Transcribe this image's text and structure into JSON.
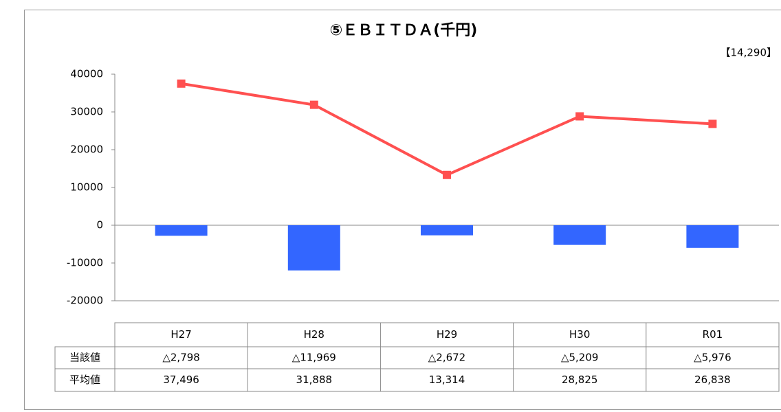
{
  "chart_data": {
    "type": "combo",
    "title": "⑤ＥＢＩＴＤＡ(千円)",
    "annotation": "【14,290】",
    "categories": [
      "H27",
      "H28",
      "H29",
      "H30",
      "R01"
    ],
    "series": [
      {
        "name": "当該値",
        "type": "bar",
        "color": "#3366ff",
        "values": [
          -2798,
          -11969,
          -2672,
          -5209,
          -5976
        ],
        "value_labels": [
          "△2,798",
          "△11,969",
          "△2,672",
          "△5,209",
          "△5,976"
        ]
      },
      {
        "name": "平均値",
        "type": "line",
        "color": "#ff5050",
        "values": [
          37496,
          31888,
          13314,
          28825,
          26838
        ],
        "value_labels": [
          "37,496",
          "31,888",
          "13,314",
          "28,825",
          "26,838"
        ]
      }
    ],
    "ylim": [
      -20000,
      40000
    ],
    "yticks": [
      -20000,
      -10000,
      0,
      10000,
      20000,
      30000,
      40000
    ],
    "grid": false
  }
}
